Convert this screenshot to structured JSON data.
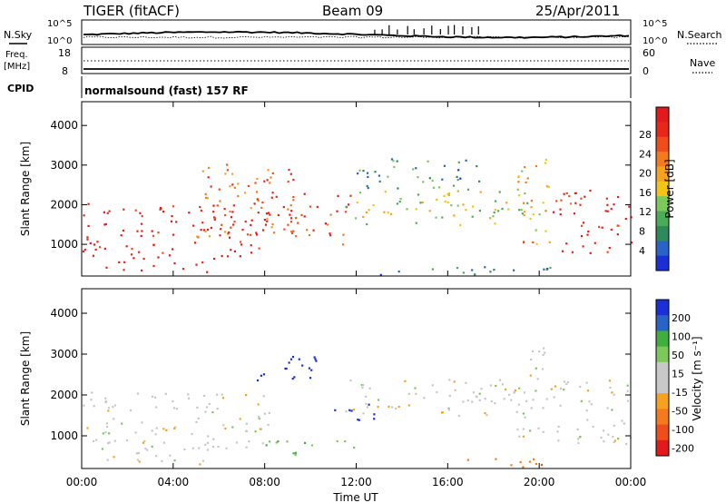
{
  "header": {
    "title": "TIGER (fitACF)",
    "beam": "Beam 09",
    "date": "25/Apr/2011"
  },
  "panels_top": {
    "nsky_label": "N.Sky",
    "nsearch_label": "N.Search",
    "left_ticks": [
      "10^5",
      "10^0"
    ],
    "right_ticks": [
      "10^5",
      "10^0"
    ],
    "freq_label_1": "Freq.",
    "freq_label_2": "[MHz]",
    "freq_ticks": [
      "18",
      "8"
    ],
    "nave_label": "Nave",
    "nave_ticks": [
      "60",
      "0"
    ],
    "cpid_label": "CPID",
    "cpid_text": "normalsound (fast) 157 RF"
  },
  "colors": {
    "power": [
      "#1a2fd6",
      "#2a63c8",
      "#2e8a5a",
      "#4cab58",
      "#7cc85a",
      "#f2c418",
      "#f7a121",
      "#f47a1e",
      "#ef4d1b",
      "#e8261a",
      "#e31a1c"
    ],
    "velocity": [
      "#e31a1c",
      "#ef4d1b",
      "#f47a1e",
      "#f7a121",
      "#c8c8c8",
      "#c8c8c8",
      "#7cc85a",
      "#3fae3f",
      "#2a63c8",
      "#1a2fd6"
    ]
  },
  "chart_data": [
    {
      "type": "heatmap",
      "name": "power",
      "ylabel": "Slant Range [km]",
      "xlabel": "",
      "colorbar_label": "Power [dB]",
      "colorbar_ticks": [
        "28",
        "24",
        "20",
        "16",
        "12",
        "8",
        "4"
      ],
      "ylim": [
        200,
        4600
      ],
      "yticks": [
        "4000",
        "3000",
        "2000",
        "1000"
      ],
      "xlim_hours": [
        0,
        24
      ],
      "xticks": [
        "00:00",
        "04:00",
        "08:00",
        "12:00",
        "16:00",
        "20:00",
        "00:00"
      ],
      "features": [
        {
          "t0": 0.0,
          "t1": 8.2,
          "r0": 700,
          "r1": 2100,
          "level": 28
        },
        {
          "t0": 1.0,
          "t1": 5.8,
          "r0": 320,
          "r1": 700,
          "level": 28
        },
        {
          "t0": 5.0,
          "t1": 9.5,
          "r0": 1200,
          "r1": 3100,
          "level": 22
        },
        {
          "t0": 9.0,
          "t1": 11.8,
          "r0": 1000,
          "r1": 2300,
          "level": 24
        },
        {
          "t0": 11.5,
          "t1": 19.8,
          "r0": 1500,
          "r1": 2400,
          "level": 14
        },
        {
          "t0": 12.0,
          "t1": 17.5,
          "r0": 2400,
          "r1": 3200,
          "level": 8
        },
        {
          "t0": 19.0,
          "t1": 20.5,
          "r0": 1000,
          "r1": 3200,
          "level": 18
        },
        {
          "t0": 20.5,
          "t1": 24.0,
          "r0": 800,
          "r1": 2400,
          "level": 26
        },
        {
          "t0": 13.0,
          "t1": 22.0,
          "r0": 250,
          "r1": 450,
          "level": 6
        }
      ]
    },
    {
      "type": "heatmap",
      "name": "velocity",
      "ylabel": "Slant Range [km]",
      "xlabel": "Time UT",
      "colorbar_label": "Velocity [m s⁻¹]",
      "colorbar_ticks": [
        "200",
        "100",
        "50",
        "15",
        "-15",
        "-50",
        "-100",
        "-200"
      ],
      "ylim": [
        200,
        4600
      ],
      "yticks": [
        "4000",
        "3000",
        "2000",
        "1000"
      ],
      "xlim_hours": [
        0,
        24
      ],
      "xticks": [
        "00:00",
        "04:00",
        "08:00",
        "12:00",
        "16:00",
        "20:00",
        "00:00"
      ],
      "features": [
        {
          "t0": 0.0,
          "t1": 8.2,
          "r0": 700,
          "r1": 2100,
          "velocity": 0
        },
        {
          "t0": 1.0,
          "t1": 5.8,
          "r0": 320,
          "r1": 700,
          "velocity": 0
        },
        {
          "t0": 7.5,
          "t1": 10.5,
          "r0": 2300,
          "r1": 3000,
          "velocity": 220
        },
        {
          "t0": 11.0,
          "t1": 13.0,
          "r0": 1400,
          "r1": 1900,
          "velocity": 230
        },
        {
          "t0": 11.5,
          "t1": 19.8,
          "r0": 1500,
          "r1": 2400,
          "velocity": 0
        },
        {
          "t0": 19.0,
          "t1": 20.5,
          "r0": 1000,
          "r1": 3200,
          "velocity": 0
        },
        {
          "t0": 20.5,
          "t1": 24.0,
          "r0": 800,
          "r1": 2400,
          "velocity": 0
        },
        {
          "t0": 16.5,
          "t1": 21.0,
          "r0": 250,
          "r1": 480,
          "velocity": -60
        },
        {
          "t0": 8.0,
          "t1": 12.0,
          "r0": 500,
          "r1": 900,
          "velocity": 40
        }
      ]
    }
  ]
}
